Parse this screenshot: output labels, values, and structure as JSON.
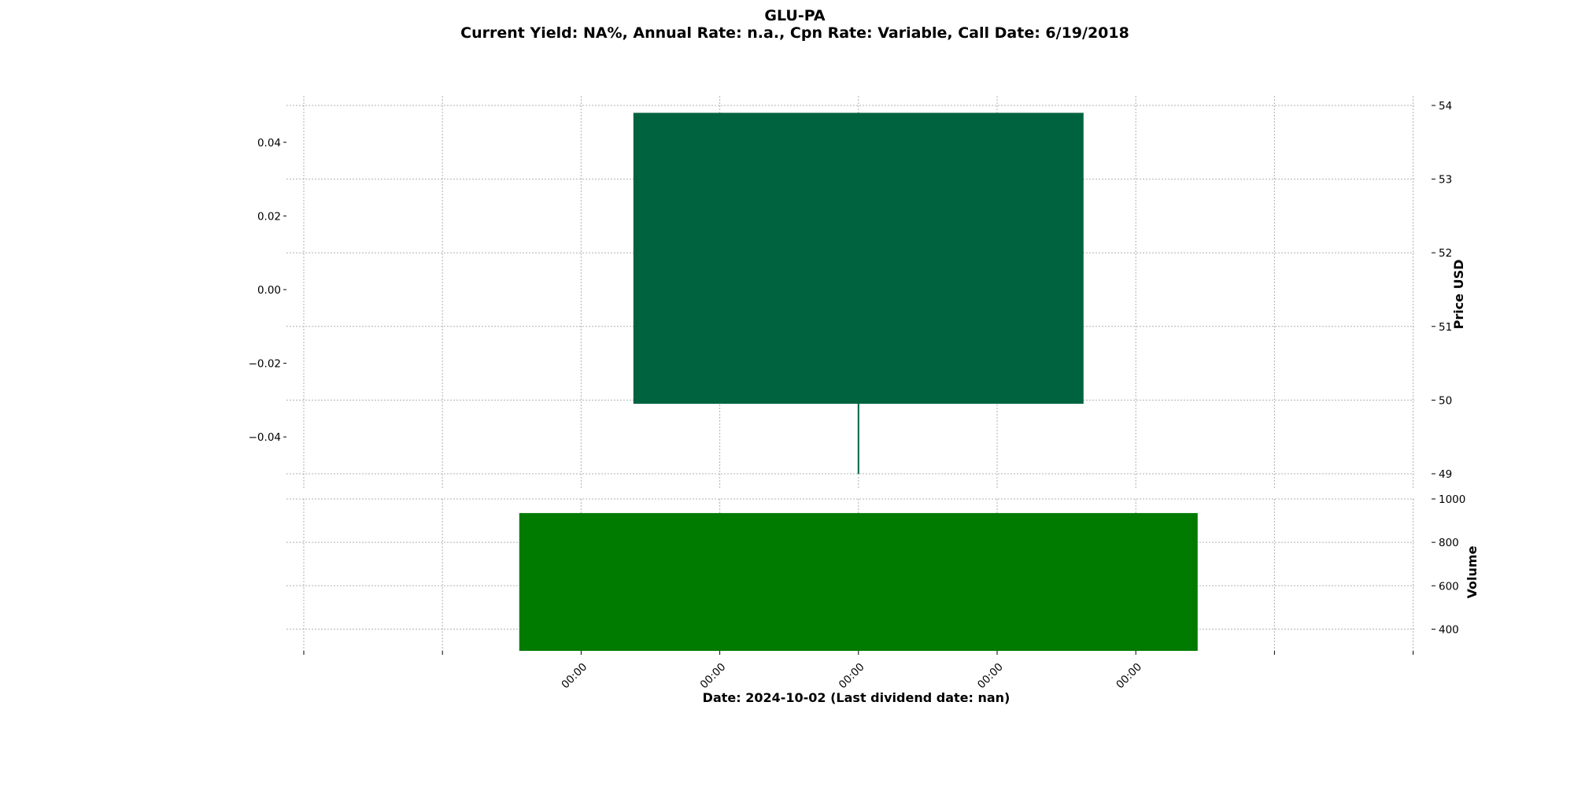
{
  "chart_data": {
    "type": "candlestick",
    "title": "GLU-PA",
    "subtitle": "Current Yield: NA%, Annual Rate: n.a., Cpn Rate: Variable, Call Date: 6/19/2018",
    "xlabel": "Date: 2024-10-02   (Last dividend date: nan)",
    "price_panel": {
      "ylabel": "Price USD",
      "right_ticks": [
        49,
        50,
        51,
        52,
        53,
        54
      ],
      "right_ylim": [
        49,
        54
      ],
      "left_ticks": [
        "0.04",
        "0.02",
        "0.00",
        "−0.02",
        "−0.04"
      ],
      "left_values": [
        0.04,
        0.02,
        0.0,
        -0.02,
        -0.04
      ],
      "left_ylim": [
        -0.05,
        0.05
      ],
      "candles": [
        {
          "open": 49.95,
          "high": 53.9,
          "low": 49.0,
          "close": 53.9,
          "color": "#006340"
        }
      ]
    },
    "volume_panel": {
      "ylabel": "Volume",
      "ticks": [
        400,
        600,
        800,
        1000
      ],
      "ylim": [
        300,
        1000
      ],
      "bars": [
        {
          "value": 935,
          "color": "#007b00"
        }
      ]
    },
    "x_tick_labels": [
      "",
      "",
      "00:00",
      "00:00",
      "00:00",
      "00:00",
      "00:00",
      "",
      ""
    ],
    "grid": true
  }
}
